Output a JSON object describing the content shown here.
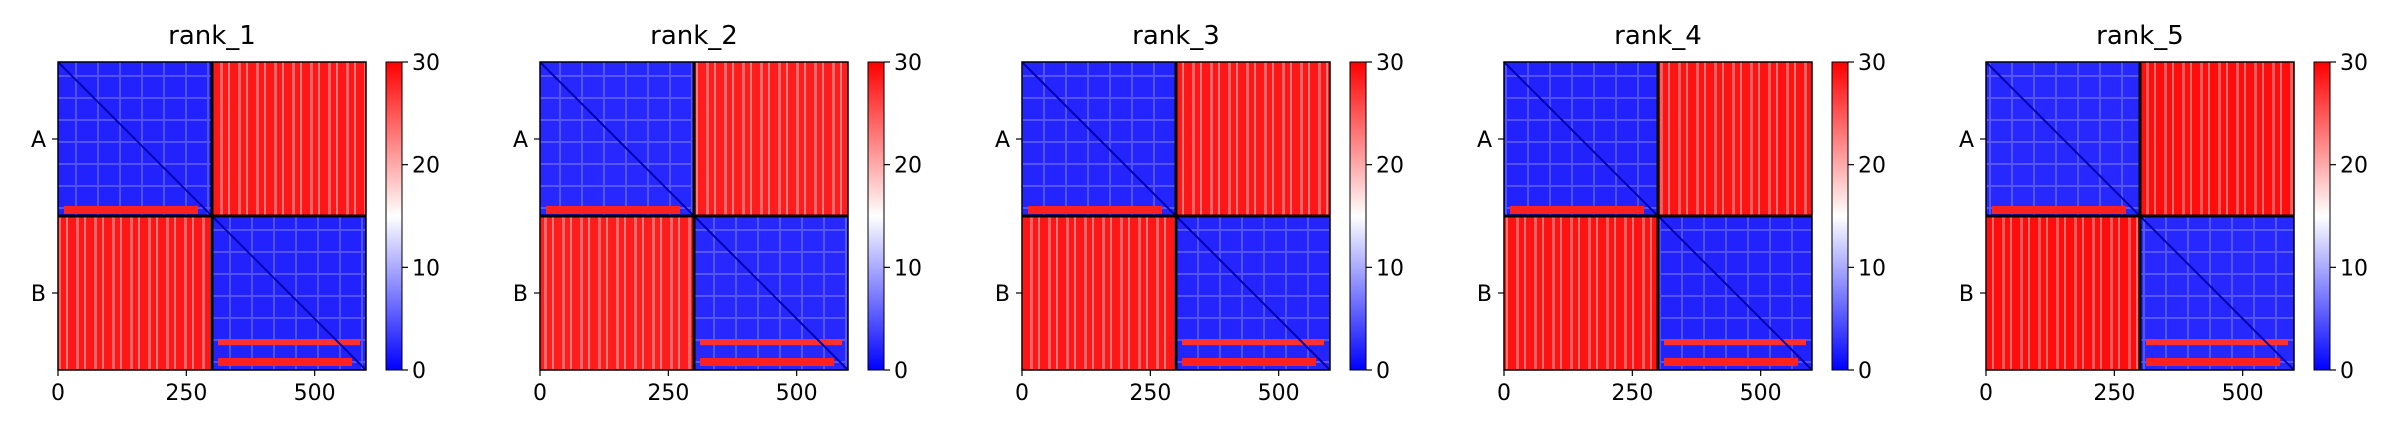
{
  "chart_data": {
    "type": "heatmap",
    "colormap": {
      "name": "bwr",
      "low": "#0000ff",
      "mid": "#ffffff",
      "high": "#ff0000"
    },
    "clim": [
      0,
      30
    ],
    "colorbar_ticks": [
      "0",
      "10",
      "20",
      "30"
    ],
    "chain_labels": [
      "A",
      "B"
    ],
    "chain_boundary": 300,
    "xlim": [
      0,
      600
    ],
    "xticks": [
      0,
      250,
      500
    ],
    "xtick_labels": [
      "0",
      "250",
      "500"
    ],
    "panels": [
      {
        "title": "rank_1",
        "intra_level": 0.08,
        "inter_level": 0.9
      },
      {
        "title": "rank_2",
        "intra_level": 0.1,
        "inter_level": 0.88
      },
      {
        "title": "rank_3",
        "intra_level": 0.09,
        "inter_level": 0.9
      },
      {
        "title": "rank_4",
        "intra_level": 0.08,
        "inter_level": 0.92
      },
      {
        "title": "rank_5",
        "intra_level": 0.1,
        "inter_level": 0.95
      }
    ]
  }
}
